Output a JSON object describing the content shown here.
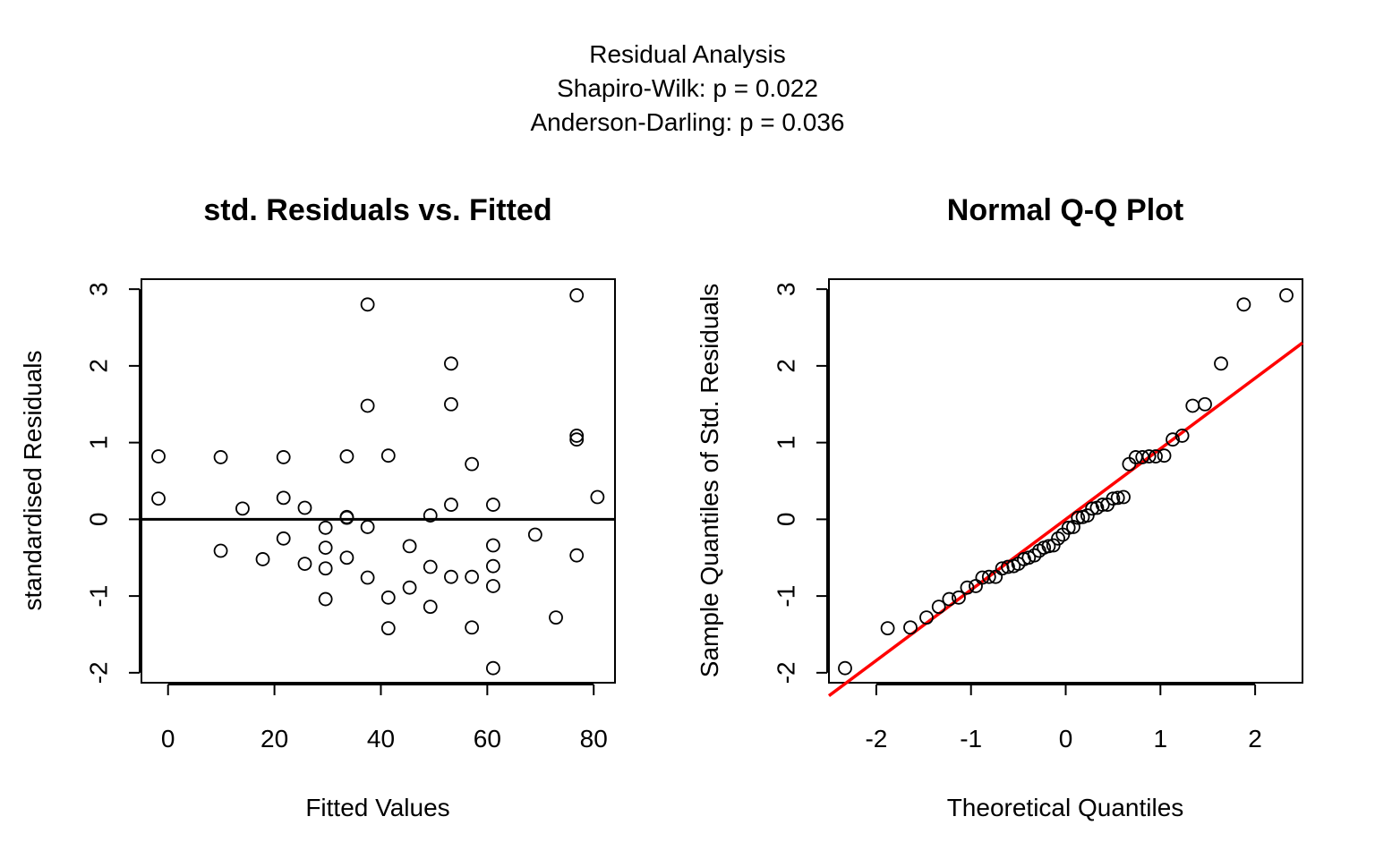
{
  "header": {
    "title": "Residual Analysis",
    "line2": "Shapiro-Wilk: p =  0.022",
    "line3": "Anderson-Darling: p =  0.036"
  },
  "colors": {
    "reference_line": "#ff0000",
    "points": "#000000",
    "zero_line": "#000000"
  },
  "chart_data": [
    {
      "type": "scatter",
      "title": "std. Residuals vs. Fitted",
      "xlabel": "Fitted Values",
      "ylabel": "standardised Residuals",
      "xlim": [
        -5,
        84
      ],
      "ylim": [
        -2.13,
        3.13
      ],
      "xticks": [
        0,
        20,
        40,
        60,
        80
      ],
      "yticks": [
        -2,
        -1,
        0,
        1,
        2,
        3
      ],
      "hline": 0,
      "points": [
        [
          -1.8,
          0.82
        ],
        [
          -1.8,
          0.27
        ],
        [
          9.9,
          0.81
        ],
        [
          9.9,
          -0.41
        ],
        [
          14.0,
          0.14
        ],
        [
          17.8,
          -0.52
        ],
        [
          21.7,
          0.81
        ],
        [
          21.7,
          0.28
        ],
        [
          21.7,
          -0.25
        ],
        [
          25.7,
          0.15
        ],
        [
          25.7,
          -0.58
        ],
        [
          29.6,
          -0.11
        ],
        [
          29.6,
          -0.37
        ],
        [
          29.6,
          -0.64
        ],
        [
          29.6,
          -1.04
        ],
        [
          33.6,
          0.82
        ],
        [
          33.6,
          0.03
        ],
        [
          33.6,
          0.02
        ],
        [
          33.6,
          -0.5
        ],
        [
          37.5,
          2.8
        ],
        [
          37.5,
          1.48
        ],
        [
          37.5,
          -0.1
        ],
        [
          37.5,
          -0.76
        ],
        [
          41.4,
          0.83
        ],
        [
          41.4,
          -1.02
        ],
        [
          41.4,
          -1.42
        ],
        [
          45.4,
          -0.35
        ],
        [
          45.4,
          -0.89
        ],
        [
          49.3,
          0.05
        ],
        [
          49.3,
          -0.62
        ],
        [
          49.3,
          -1.14
        ],
        [
          53.2,
          2.03
        ],
        [
          53.2,
          1.5
        ],
        [
          53.2,
          0.19
        ],
        [
          53.2,
          -0.75
        ],
        [
          57.1,
          0.72
        ],
        [
          57.1,
          -0.75
        ],
        [
          57.1,
          -1.41
        ],
        [
          61.1,
          0.19
        ],
        [
          61.1,
          -0.34
        ],
        [
          61.1,
          -0.61
        ],
        [
          61.1,
          -0.87
        ],
        [
          61.1,
          -1.94
        ],
        [
          69.0,
          -0.2
        ],
        [
          72.9,
          -1.28
        ],
        [
          76.8,
          2.92
        ],
        [
          76.8,
          1.09
        ],
        [
          76.8,
          1.04
        ],
        [
          76.8,
          -0.47
        ],
        [
          80.7,
          0.29
        ]
      ]
    },
    {
      "type": "scatter",
      "title": "Normal Q-Q Plot",
      "xlabel": "Theoretical Quantiles",
      "ylabel": "Sample Quantiles of Std. Residuals",
      "xlim": [
        -2.5,
        2.5
      ],
      "ylim": [
        -2.13,
        3.13
      ],
      "xticks": [
        -2,
        -1,
        0,
        1,
        2
      ],
      "yticks": [
        -2,
        -1,
        0,
        1,
        2,
        3
      ],
      "reference_line": {
        "intercept": 0.0,
        "slope": 0.92
      },
      "points": [
        [
          -2.33,
          -1.94
        ],
        [
          -1.88,
          -1.42
        ],
        [
          -1.64,
          -1.41
        ],
        [
          -1.47,
          -1.28
        ],
        [
          -1.34,
          -1.14
        ],
        [
          -1.23,
          -1.04
        ],
        [
          -1.13,
          -1.02
        ],
        [
          -1.04,
          -0.89
        ],
        [
          -0.95,
          -0.87
        ],
        [
          -0.88,
          -0.76
        ],
        [
          -0.81,
          -0.75
        ],
        [
          -0.74,
          -0.75
        ],
        [
          -0.67,
          -0.64
        ],
        [
          -0.61,
          -0.62
        ],
        [
          -0.55,
          -0.61
        ],
        [
          -0.5,
          -0.58
        ],
        [
          -0.44,
          -0.52
        ],
        [
          -0.39,
          -0.5
        ],
        [
          -0.33,
          -0.47
        ],
        [
          -0.28,
          -0.41
        ],
        [
          -0.23,
          -0.37
        ],
        [
          -0.18,
          -0.35
        ],
        [
          -0.13,
          -0.34
        ],
        [
          -0.08,
          -0.25
        ],
        [
          -0.03,
          -0.2
        ],
        [
          0.03,
          -0.11
        ],
        [
          0.08,
          -0.1
        ],
        [
          0.13,
          0.02
        ],
        [
          0.18,
          0.03
        ],
        [
          0.23,
          0.05
        ],
        [
          0.28,
          0.14
        ],
        [
          0.33,
          0.15
        ],
        [
          0.39,
          0.19
        ],
        [
          0.44,
          0.19
        ],
        [
          0.5,
          0.27
        ],
        [
          0.55,
          0.28
        ],
        [
          0.61,
          0.29
        ],
        [
          0.67,
          0.72
        ],
        [
          0.74,
          0.81
        ],
        [
          0.81,
          0.81
        ],
        [
          0.88,
          0.82
        ],
        [
          0.95,
          0.82
        ],
        [
          1.04,
          0.83
        ],
        [
          1.13,
          1.04
        ],
        [
          1.23,
          1.09
        ],
        [
          1.34,
          1.48
        ],
        [
          1.47,
          1.5
        ],
        [
          1.64,
          2.03
        ],
        [
          1.88,
          2.8
        ],
        [
          2.33,
          2.92
        ]
      ]
    }
  ]
}
